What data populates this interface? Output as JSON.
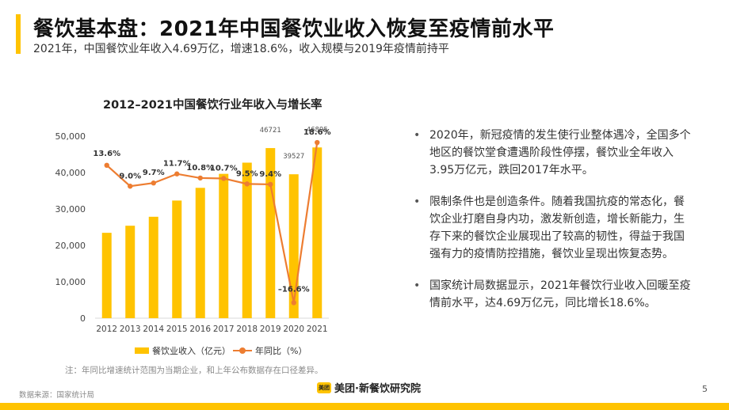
{
  "header": {
    "title": "餐饮基本盘：2021年中国餐饮业收入恢复至疫情前水平",
    "subtitle": "2021年，中国餐饮业年收入4.69万亿，增速18.6%，收入规模与2019年疫情前持平",
    "accent_color": "#FFC300"
  },
  "chart_data": {
    "type": "bar",
    "title": "2012–2021中国餐饮行业年收入与增长率",
    "categories": [
      "2012",
      "2013",
      "2014",
      "2015",
      "2016",
      "2017",
      "2018",
      "2019",
      "2020",
      "2021"
    ],
    "yticks": [
      "0",
      "10,000",
      "20,000",
      "30,000",
      "40,000",
      "50,000"
    ],
    "ylim": [
      0,
      50000
    ],
    "y2lim": [
      -20,
      20
    ],
    "grid": false,
    "legend_position": "bottom",
    "series": [
      {
        "name": "餐饮业收入（亿元）",
        "type": "bar",
        "color": "#FFC300",
        "values": [
          23448,
          25392,
          27860,
          32310,
          35799,
          39644,
          42716,
          46721,
          39527,
          46895
        ],
        "labels": [
          "",
          "",
          "",
          "",
          "",
          "",
          "",
          "46721",
          "39527",
          "46895"
        ]
      },
      {
        "name": "年同比（%）",
        "type": "line",
        "color": "#ED7D31",
        "values": [
          13.6,
          9.0,
          9.7,
          11.7,
          10.8,
          10.7,
          9.5,
          9.4,
          -16.6,
          18.6
        ],
        "labels": [
          "13.6%",
          "9.0%",
          "9.7%",
          "11.7%",
          "10.8%",
          "10.7%",
          "9.5%",
          "9.4%",
          "–16.6%",
          "18.6%"
        ]
      }
    ]
  },
  "bullets": [
    "2020年，新冠疫情的发生使行业整体遇冷，全国多个地区的餐饮堂食遭遇阶段性停摆，餐饮业全年收入3.95万亿元，跌回2017年水平。",
    "限制条件也是创造条件。随着我国抗疫的常态化，餐饮企业打磨自身内功，激发新创造，增长新能力，生存下来的餐饮企业展现出了较高的韧性，得益于我国强有力的疫情防控措施，餐饮业呈现出恢复态势。",
    "国家统计局数据显示，2021年餐饮行业收入回暖至疫情前水平，达4.69万亿元，同比增长18.6%。"
  ],
  "bullet_marker": "•",
  "footer": {
    "note": "注：年同比增速统计范围为当期企业，和上年公布数据存在口径差异。",
    "source": "数据来源：国家统计局",
    "brand_logo_text": "美团",
    "brand": "美团·新餐饮研究院",
    "page_number": "5"
  }
}
